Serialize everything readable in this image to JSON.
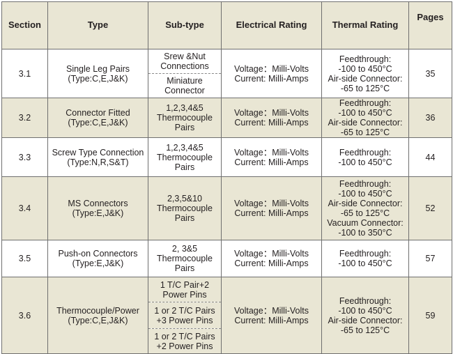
{
  "header": {
    "section": "Section",
    "type": "Type",
    "subtype": "Sub-type",
    "electrical": "Electrical Rating",
    "thermal": "Thermal Rating",
    "pages": "Pages"
  },
  "rows": [
    {
      "section": "3.1",
      "type": [
        "Single Leg Pairs",
        "(Type:C,E,J&K)"
      ],
      "subtypes": [
        [
          "Srew &Nut",
          "Connections"
        ],
        [
          "Miniature",
          "Connector"
        ]
      ],
      "electrical": [
        "Voltage：Milli-Volts",
        "Current: Milli-Amps"
      ],
      "thermal": [
        "Feedthrough:",
        "-100 to 450°C",
        "Air-side Connector:",
        "-65 to 125°C"
      ],
      "pages": "35"
    },
    {
      "section": "3.2",
      "type": [
        "Connector Fitted",
        "(Type:C,E,J&K)"
      ],
      "subtypes": [
        [
          "1,2,3,4&5",
          "Thermocouple",
          "Pairs"
        ]
      ],
      "electrical": [
        "Voltage：Milli-Volts",
        "Current: Milli-Amps"
      ],
      "thermal": [
        "Feedthrough:",
        "-100 to 450°C",
        "Air-side Connector:",
        "-65 to 125°C"
      ],
      "pages": "36"
    },
    {
      "section": "3.3",
      "type": [
        "Screw Type Connection",
        "(Type:N,R,S&T)"
      ],
      "subtypes": [
        [
          "1,2,3,4&5",
          "Thermocouple",
          "Pairs"
        ]
      ],
      "electrical": [
        "Voltage：Milli-Volts",
        "Current: Milli-Amps"
      ],
      "thermal": [
        "Feedthrough:",
        "-100 to 450°C"
      ],
      "pages": "44"
    },
    {
      "section": "3.4",
      "type": [
        "MS Connectors",
        "(Type:E,J&K)"
      ],
      "subtypes": [
        [
          "2,3,5&10",
          "Thermocouple",
          "Pairs"
        ]
      ],
      "electrical": [
        "Voltage：Milli-Volts",
        "Current: Milli-Amps"
      ],
      "thermal": [
        "Feedthrough:",
        "-100 to 450°C",
        "Air-side Connector:",
        "-65 to 125°C",
        "Vacuum Connector:",
        "-100 to 350°C"
      ],
      "pages": "52"
    },
    {
      "section": "3.5",
      "type": [
        "Push-on Connectors",
        "(Type:E,J&K)"
      ],
      "subtypes": [
        [
          "2, 3&5",
          "Thermocouple",
          "Pairs"
        ]
      ],
      "electrical": [
        "Voltage：Milli-Volts",
        "Current: Milli-Amps"
      ],
      "thermal": [
        "Feedthrough:",
        "-100 to 450°C"
      ],
      "pages": "57"
    },
    {
      "section": "3.6",
      "type": [
        "Thermocouple/Power",
        "(Type:C,E,J&K)"
      ],
      "subtypes": [
        [
          "1 T/C Pair+2",
          "Power Pins"
        ],
        [
          "1 or 2 T/C Pairs",
          "+3 Power Pins"
        ],
        [
          "1 or 2 T/C Pairs",
          "+2 Power Pins"
        ]
      ],
      "electrical": [
        "Voltage：Milli-Volts",
        "Current: Milli-Amps"
      ],
      "thermal": [
        "Feedthrough:",
        "-100 to 450°C",
        "Air-side Connector:",
        "-65 to 125°C"
      ],
      "pages": "59"
    }
  ],
  "colors": {
    "shade": "#e9e6d4",
    "border": "#6f6f6f",
    "text": "#231f20"
  }
}
